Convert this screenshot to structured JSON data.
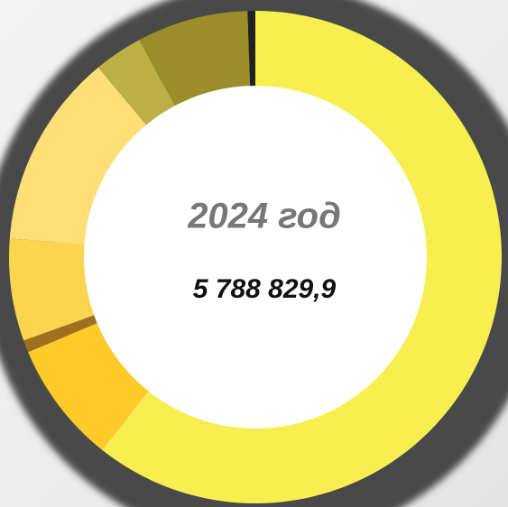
{
  "chart_data": {
    "type": "donut",
    "title": "2024 год",
    "total_label": "5 788 829,9",
    "values": [
      60.7,
      8,
      0.8,
      6.7,
      12.8,
      3.2,
      7.3,
      0.5
    ],
    "colors": [
      "#F7EE50",
      "#FECB2B",
      "#A07020",
      "#FBD550",
      "#FDDF76",
      "#BCAF45",
      "#9B8E2A",
      "#222222"
    ]
  }
}
